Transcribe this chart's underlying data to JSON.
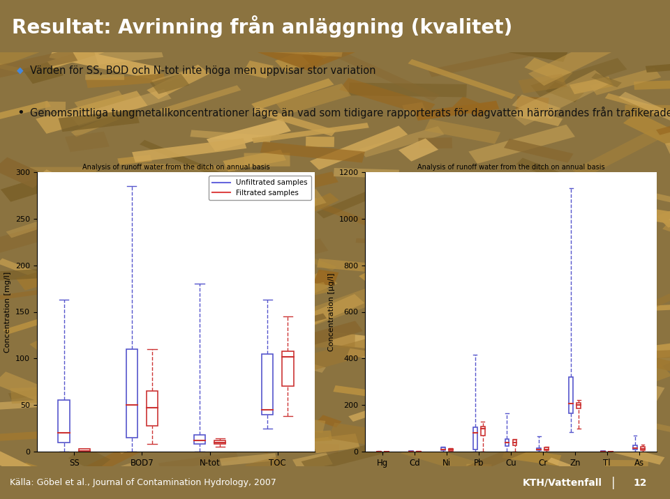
{
  "title": "Resultat: Avrinning från anläggning (kvalitet)",
  "title_bg": "#2060B8",
  "title_color": "#FFFFFF",
  "bullet1": "Värden för SS, BOD och N-tot inte höga men uppvisar stor variation",
  "bullet2": "Genomsnittliga tungmetallkoncentrationer lägre än vad som tidigare rapporterats för dagvatten härrörandes från trafikerade områden",
  "footer_left": "Källa: Göbel et al., Journal of Contamination Hydrology, 2007",
  "footer_right": "KTH/Vattenfall",
  "footer_sep": "|",
  "page_num": "12",
  "footer_bg": "#2060B8",
  "footer_color": "#FFFFFF",
  "chart1_title": "Analysis of runoff water from the ditch on annual basis",
  "chart1_ylabel": "Concentration [mg/l]",
  "chart1_ylim": [
    0,
    300
  ],
  "chart1_yticks": [
    0,
    50,
    100,
    150,
    200,
    250,
    300
  ],
  "chart1_categories": [
    "SS",
    "BOD7",
    "N-tot",
    "TOC"
  ],
  "chart1_blue_boxes": [
    {
      "q1": 10,
      "median": 20,
      "q3": 55,
      "whisker_low": 0,
      "whisker_high": 163
    },
    {
      "q1": 15,
      "median": 50,
      "q3": 110,
      "whisker_low": 0,
      "whisker_high": 285
    },
    {
      "q1": 8,
      "median": 12,
      "q3": 18,
      "whisker_low": 0,
      "whisker_high": 180
    },
    {
      "q1": 40,
      "median": 45,
      "q3": 105,
      "whisker_low": 25,
      "whisker_high": 163
    }
  ],
  "chart1_red_boxes": [
    {
      "q1": 0,
      "median": 1,
      "q3": 3,
      "whisker_low": 0,
      "whisker_high": 3
    },
    {
      "q1": 28,
      "median": 47,
      "q3": 65,
      "whisker_low": 8,
      "whisker_high": 110
    },
    {
      "q1": 8,
      "median": 10,
      "q3": 12,
      "whisker_low": 5,
      "whisker_high": 14
    },
    {
      "q1": 70,
      "median": 102,
      "q3": 108,
      "whisker_low": 38,
      "whisker_high": 145
    }
  ],
  "chart2_title": "Analysis of runoff water from the ditch on annual basis",
  "chart2_ylabel": "Concentration [μg/l]",
  "chart2_ylim": [
    0,
    1200
  ],
  "chart2_yticks": [
    0,
    200,
    400,
    600,
    800,
    1000,
    1200
  ],
  "chart2_categories": [
    "Hg",
    "Cd",
    "Ni",
    "Pb",
    "Cu",
    "Cr",
    "Zn",
    "Tl",
    "As"
  ],
  "chart2_blue_boxes": [
    {
      "q1": 0,
      "median": 0.5,
      "q3": 1,
      "whisker_low": 0,
      "whisker_high": 2
    },
    {
      "q1": 0,
      "median": 1,
      "q3": 3,
      "whisker_low": 0,
      "whisker_high": 4
    },
    {
      "q1": 5,
      "median": 10,
      "q3": 18,
      "whisker_low": 0,
      "whisker_high": 22
    },
    {
      "q1": 10,
      "median": 80,
      "q3": 105,
      "whisker_low": 0,
      "whisker_high": 415
    },
    {
      "q1": 25,
      "median": 40,
      "q3": 55,
      "whisker_low": 0,
      "whisker_high": 165
    },
    {
      "q1": 5,
      "median": 8,
      "q3": 15,
      "whisker_low": 0,
      "whisker_high": 65
    },
    {
      "q1": 165,
      "median": 205,
      "q3": 320,
      "whisker_low": 85,
      "whisker_high": 1130
    },
    {
      "q1": 0,
      "median": 1,
      "q3": 2,
      "whisker_low": 0,
      "whisker_high": 3
    },
    {
      "q1": 8,
      "median": 15,
      "q3": 28,
      "whisker_low": 0,
      "whisker_high": 70
    }
  ],
  "chart2_red_boxes": [
    {
      "q1": 0,
      "median": 0.5,
      "q3": 1,
      "whisker_low": 0,
      "whisker_high": 1
    },
    {
      "q1": 0,
      "median": 0.5,
      "q3": 1,
      "whisker_low": 0,
      "whisker_high": 2
    },
    {
      "q1": 4,
      "median": 8,
      "q3": 12,
      "whisker_low": 0,
      "whisker_high": 14
    },
    {
      "q1": 70,
      "median": 98,
      "q3": 108,
      "whisker_low": 0,
      "whisker_high": 130
    },
    {
      "q1": 28,
      "median": 38,
      "q3": 50,
      "whisker_low": 0,
      "whisker_high": 55
    },
    {
      "q1": 5,
      "median": 10,
      "q3": 18,
      "whisker_low": 0,
      "whisker_high": 22
    },
    {
      "q1": 185,
      "median": 200,
      "q3": 210,
      "whisker_low": 100,
      "whisker_high": 220
    },
    {
      "q1": 0,
      "median": 0.5,
      "q3": 1,
      "whisker_low": 0,
      "whisker_high": 1
    },
    {
      "q1": 5,
      "median": 12,
      "q3": 22,
      "whisker_low": 0,
      "whisker_high": 30
    }
  ],
  "blue_color": "#5555CC",
  "red_color": "#CC3333",
  "chart_bg": "#FFFFFF",
  "legend_line_blue": "#6666DD",
  "legend_line_red": "#DD4444"
}
